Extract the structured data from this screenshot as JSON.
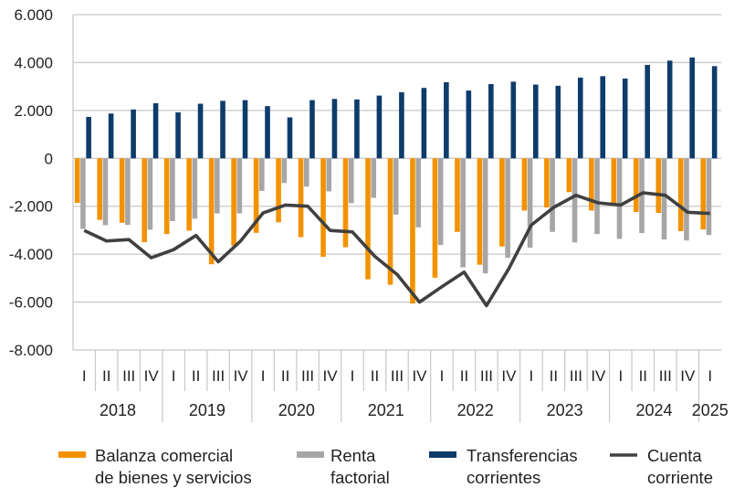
{
  "chart_data": {
    "type": "bar+line",
    "title": "",
    "xlabel": "",
    "ylabel": "",
    "ylim": [
      -8000,
      6000
    ],
    "yticks": [
      6000,
      4000,
      2000,
      0,
      -2000,
      -4000,
      -6000,
      -8000
    ],
    "ytick_labels": [
      "6.000",
      "4.000",
      "2.000",
      "0",
      "-2.000",
      "-4.000",
      "-6.000",
      "-8.000"
    ],
    "grid": "horizontal",
    "legend_position": "bottom",
    "years": [
      {
        "label": "2018",
        "quarters": 4
      },
      {
        "label": "2019",
        "quarters": 4
      },
      {
        "label": "2020",
        "quarters": 4
      },
      {
        "label": "2021",
        "quarters": 4
      },
      {
        "label": "2022",
        "quarters": 4
      },
      {
        "label": "2023",
        "quarters": 4
      },
      {
        "label": "2024",
        "quarters": 4
      },
      {
        "label": "2025",
        "quarters": 1
      }
    ],
    "categories": [
      "I",
      "II",
      "III",
      "IV",
      "I",
      "II",
      "III",
      "IV",
      "I",
      "II",
      "III",
      "IV",
      "I",
      "II",
      "III",
      "IV",
      "I",
      "II",
      "III",
      "IV",
      "I",
      "II",
      "III",
      "IV",
      "I",
      "II",
      "III",
      "IV",
      "I"
    ],
    "series": [
      {
        "name": "Balanza comercial de bienes y servicios",
        "name_lines": [
          "Balanza comercial",
          "de bienes y servicios"
        ],
        "kind": "bar",
        "color": "#F39200",
        "values": [
          -1860,
          -2570,
          -2690,
          -3500,
          -3160,
          -3020,
          -4420,
          -3640,
          -3110,
          -2670,
          -3290,
          -4110,
          -3710,
          -5050,
          -5280,
          -6060,
          -4980,
          -3070,
          -4440,
          -3680,
          -2180,
          -2050,
          -1410,
          -2180,
          -1920,
          -2240,
          -2280,
          -3040,
          -2970
        ]
      },
      {
        "name": "Renta factorial",
        "name_lines": [
          "Renta",
          "factorial"
        ],
        "kind": "bar",
        "color": "#A6A6A6",
        "values": [
          -2940,
          -2790,
          -2780,
          -2980,
          -2620,
          -2520,
          -2300,
          -2300,
          -1360,
          -1030,
          -1180,
          -1380,
          -1870,
          -1650,
          -2350,
          -2880,
          -3620,
          -4550,
          -4800,
          -4150,
          -3730,
          -3070,
          -3510,
          -3160,
          -3360,
          -3120,
          -3390,
          -3430,
          -3200
        ]
      },
      {
        "name": "Transferencias corrientes",
        "name_lines": [
          "Transferencias",
          "corrientes"
        ],
        "kind": "bar",
        "color": "#0D3C6B",
        "values": [
          1730,
          1870,
          2040,
          2300,
          1920,
          2280,
          2400,
          2430,
          2180,
          1710,
          2430,
          2480,
          2460,
          2620,
          2760,
          2940,
          3180,
          2830,
          3100,
          3200,
          3080,
          3030,
          3370,
          3430,
          3330,
          3900,
          4080,
          4210,
          3850
        ]
      },
      {
        "name": "Cuenta corriente",
        "name_lines": [
          "Cuenta",
          "corriente"
        ],
        "kind": "line",
        "color": "#404040",
        "values": [
          -3010,
          -3450,
          -3390,
          -4150,
          -3810,
          -3220,
          -4320,
          -3450,
          -2280,
          -1950,
          -2000,
          -3010,
          -3070,
          -4090,
          -4850,
          -6000,
          -5360,
          -4750,
          -6150,
          -4600,
          -2790,
          -2050,
          -1540,
          -1860,
          -1950,
          -1440,
          -1540,
          -2250,
          -2300
        ]
      }
    ]
  }
}
